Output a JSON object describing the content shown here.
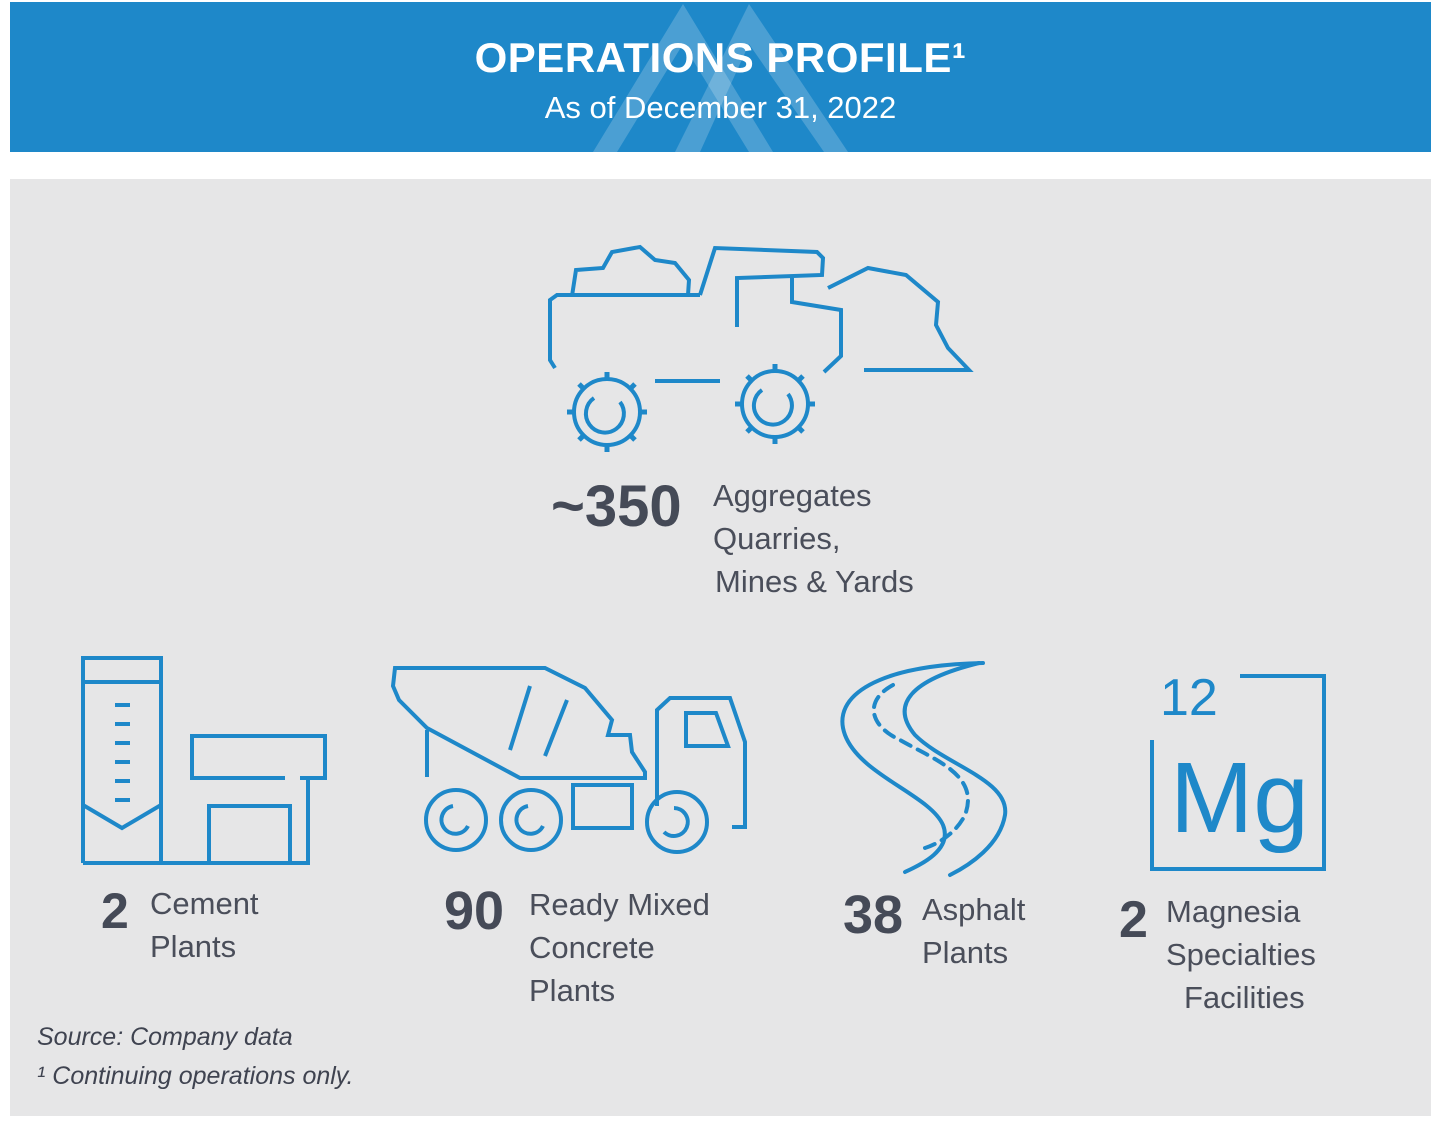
{
  "header": {
    "title": "OPERATIONS PROFILE¹",
    "subtitle": "As of December 31, 2022",
    "background_color": "#1e88c9",
    "logo": "mountain-chevron-logo"
  },
  "panel": {
    "background_color": "#e6e6e7",
    "icon_color": "#1e88c9"
  },
  "stats": {
    "aggregates": {
      "number": "~350",
      "label": [
        "Aggregates",
        "Quarries,",
        "Mines & Yards"
      ],
      "icon": "haul-truck-loader-icon"
    },
    "cement": {
      "number": "2",
      "label": [
        "Cement",
        "Plants"
      ],
      "icon": "cement-plant-icon"
    },
    "ready_mixed": {
      "number": "90",
      "label": [
        "Ready Mixed",
        "Concrete",
        "Plants"
      ],
      "icon": "concrete-mixer-truck-icon"
    },
    "asphalt": {
      "number": "38",
      "label": [
        "Asphalt",
        "Plants"
      ],
      "icon": "winding-road-icon"
    },
    "magnesia": {
      "number": "2",
      "label": [
        "Magnesia",
        "Specialties",
        "Facilities"
      ],
      "icon": "magnesium-element-icon",
      "element_number": "12",
      "element_symbol": "Mg"
    }
  },
  "footnotes": {
    "source": "Source: Company data",
    "note": "¹ Continuing operations only."
  }
}
